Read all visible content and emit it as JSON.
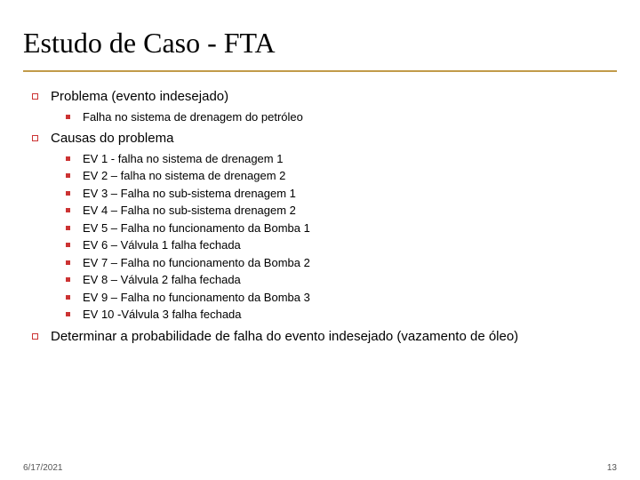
{
  "title": "Estudo de Caso - FTA",
  "sections": [
    {
      "heading": "Problema (evento indesejado)",
      "items": [
        "Falha no sistema de drenagem do petróleo"
      ]
    },
    {
      "heading": "Causas do problema",
      "items": [
        "EV 1 - falha no sistema de drenagem 1",
        "EV 2 – falha no sistema de drenagem 2",
        "EV 3 – Falha no sub-sistema drenagem 1",
        "EV 4 – Falha no sub-sistema drenagem 2",
        "EV 5 – Falha no funcionamento da Bomba 1",
        "EV 6 – Válvula 1 falha fechada",
        "EV 7 – Falha no funcionamento da Bomba 2",
        "EV 8 – Válvula 2 falha fechada",
        "EV 9 – Falha no funcionamento da Bomba 3",
        "EV 10 -Válvula 3 falha fechada"
      ]
    },
    {
      "heading": "Determinar a probabilidade de falha do evento indesejado (vazamento de óleo)",
      "items": []
    }
  ],
  "footer": {
    "date": "6/17/2021",
    "page": "13"
  },
  "colors": {
    "accent": "#cc3333",
    "title_underline": "#c19b4a",
    "text": "#000000",
    "background": "#ffffff"
  }
}
